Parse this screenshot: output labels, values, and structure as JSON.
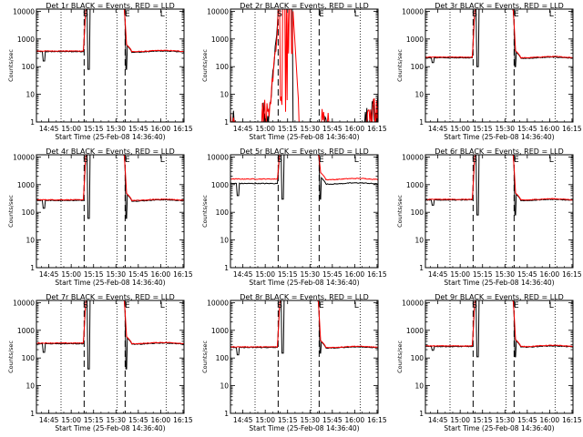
{
  "chart_data": {
    "type": "line",
    "layout": {
      "rows": 3,
      "cols": 3
    },
    "shared": {
      "y_scale": "log",
      "ylim": [
        1,
        12000
      ],
      "y_ticks": [
        1,
        10,
        100,
        1000,
        10000
      ],
      "y_tick_labels": [
        "1",
        "10",
        "100",
        "1000",
        "10000"
      ],
      "ylabel": "Counts/sec",
      "xlabel": "Start Time (25-Feb-08 14:36:40)",
      "x_ticks": [
        "14:45",
        "15:00",
        "15:15",
        "15:30",
        "15:45",
        "16:00",
        "16:15"
      ],
      "x_tick_minutes": [
        8.33,
        23.33,
        38.33,
        53.33,
        68.33,
        83.33,
        98.33
      ],
      "xlim_minutes": [
        0,
        99
      ],
      "dotted_markers_minutes": [
        16.5,
        54,
        87
      ],
      "dashed_markers_minutes": [
        32,
        59.5
      ],
      "letters": [
        {
          "text": "S",
          "at_minutes": 33
        },
        {
          "text": "E",
          "at_minutes": 61
        },
        {
          "text": "L",
          "at_minutes": 84.5
        }
      ],
      "series_colors": {
        "events": "#000000",
        "lld": "#ff0000"
      }
    },
    "panels": [
      {
        "title": "Det 1r BLACK = Events, RED = LLD",
        "profile": "normal",
        "base": 350,
        "lld_ratio": 1.05,
        "dips": [
          [
            5,
            160
          ],
          [
            35,
            80
          ]
        ]
      },
      {
        "title": "Det 2r BLACK = Events, RED = LLD",
        "profile": "noisy",
        "base": 1,
        "lld_ratio": 1,
        "dips": []
      },
      {
        "title": "Det 3r BLACK = Events, RED = LLD",
        "profile": "normal",
        "base": 210,
        "lld_ratio": 1.05,
        "dips": [
          [
            5,
            140
          ],
          [
            35,
            100
          ]
        ]
      },
      {
        "title": "Det 4r BLACK = Events, RED = LLD",
        "profile": "normal",
        "base": 270,
        "lld_ratio": 1.05,
        "dips": [
          [
            5,
            140
          ],
          [
            35,
            60
          ]
        ]
      },
      {
        "title": "Det 5r BLACK = Events, RED = LLD",
        "profile": "normal",
        "base": 1100,
        "lld_ratio": 1.45,
        "dips": [
          [
            5,
            400
          ],
          [
            35,
            300
          ]
        ]
      },
      {
        "title": "Det 6r BLACK = Events, RED = LLD",
        "profile": "normal",
        "base": 280,
        "lld_ratio": 1.05,
        "dips": [
          [
            5,
            180
          ],
          [
            35,
            80
          ]
        ]
      },
      {
        "title": "Det 7r BLACK = Events, RED = LLD",
        "profile": "normal",
        "base": 330,
        "lld_ratio": 1.05,
        "dips": [
          [
            5,
            160
          ],
          [
            35,
            40
          ]
        ]
      },
      {
        "title": "Det 8r BLACK = Events, RED = LLD",
        "profile": "normal",
        "base": 240,
        "lld_ratio": 1.05,
        "dips": [
          [
            5,
            130
          ],
          [
            35,
            150
          ]
        ]
      },
      {
        "title": "Det 9r BLACK = Events, RED = LLD",
        "profile": "normal",
        "base": 260,
        "lld_ratio": 1.05,
        "dips": [
          [
            5,
            190
          ],
          [
            35,
            110
          ]
        ]
      }
    ]
  }
}
